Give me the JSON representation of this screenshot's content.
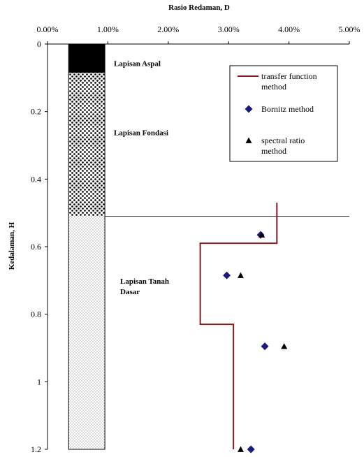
{
  "chart_data": {
    "type": "scatter",
    "title": "Rasio Redaman, D",
    "xlabel": "Rasio Redaman, D",
    "ylabel": "Kedalaman, H",
    "xlim": [
      0,
      5
    ],
    "ylim": [
      0,
      1.2
    ],
    "x_axis_position": "top",
    "y_axis_inverted": true,
    "x_tick_labels": [
      "0.00%",
      "1.00%",
      "2.00%",
      "3.00%",
      "4.00%",
      "5.00%"
    ],
    "y_tick_labels": [
      "0",
      "0.2",
      "0.4",
      "0.6",
      "0.8",
      "1",
      "1.2"
    ],
    "grid": false,
    "legend_position": "top-right",
    "layers": [
      {
        "name": "Lapisan Aspal",
        "label_lines": [
          "Lapisan Aspal"
        ],
        "depth_top": 0,
        "depth_bottom": 0.085,
        "fill": "solid"
      },
      {
        "name": "Lapisan Fondasi",
        "label_lines": [
          "Lapisan Fondasi"
        ],
        "depth_top": 0.085,
        "depth_bottom": 0.51,
        "fill": "coarse-dots"
      },
      {
        "name": "Lapisan Tanah Dasar",
        "label_lines": [
          "Lapisan Tanah",
          "Dasar"
        ],
        "depth_top": 0.51,
        "depth_bottom": 1.2,
        "fill": "fine-dots"
      }
    ],
    "column_x_range": [
      0.35,
      0.95
    ],
    "boundary_line": {
      "depth": 0.51,
      "x_from": 0.95,
      "x_to": 5.0
    },
    "series": [
      {
        "name": "transfer function method",
        "legend_lines": [
          "transfer function",
          "method"
        ],
        "marker": "line",
        "color": "#8b1a1a",
        "points": [
          [
            3.8,
            0.47
          ],
          [
            3.8,
            0.59
          ],
          [
            2.53,
            0.59
          ],
          [
            2.53,
            0.83
          ],
          [
            3.08,
            0.83
          ],
          [
            3.08,
            1.2
          ]
        ]
      },
      {
        "name": "Bornitz method",
        "legend_lines": [
          "Bornitz method"
        ],
        "marker": "diamond",
        "color": "#1a1a7a",
        "points": [
          [
            3.53,
            0.565
          ],
          [
            2.97,
            0.685
          ],
          [
            3.6,
            0.895
          ],
          [
            3.37,
            1.2
          ]
        ]
      },
      {
        "name": "spectral ratio method",
        "legend_lines": [
          "spectral ratio",
          "method"
        ],
        "marker": "triangle",
        "color": "#000000",
        "points": [
          [
            3.55,
            0.565
          ],
          [
            3.2,
            0.685
          ],
          [
            3.92,
            0.895
          ],
          [
            3.2,
            1.2
          ]
        ]
      }
    ]
  }
}
